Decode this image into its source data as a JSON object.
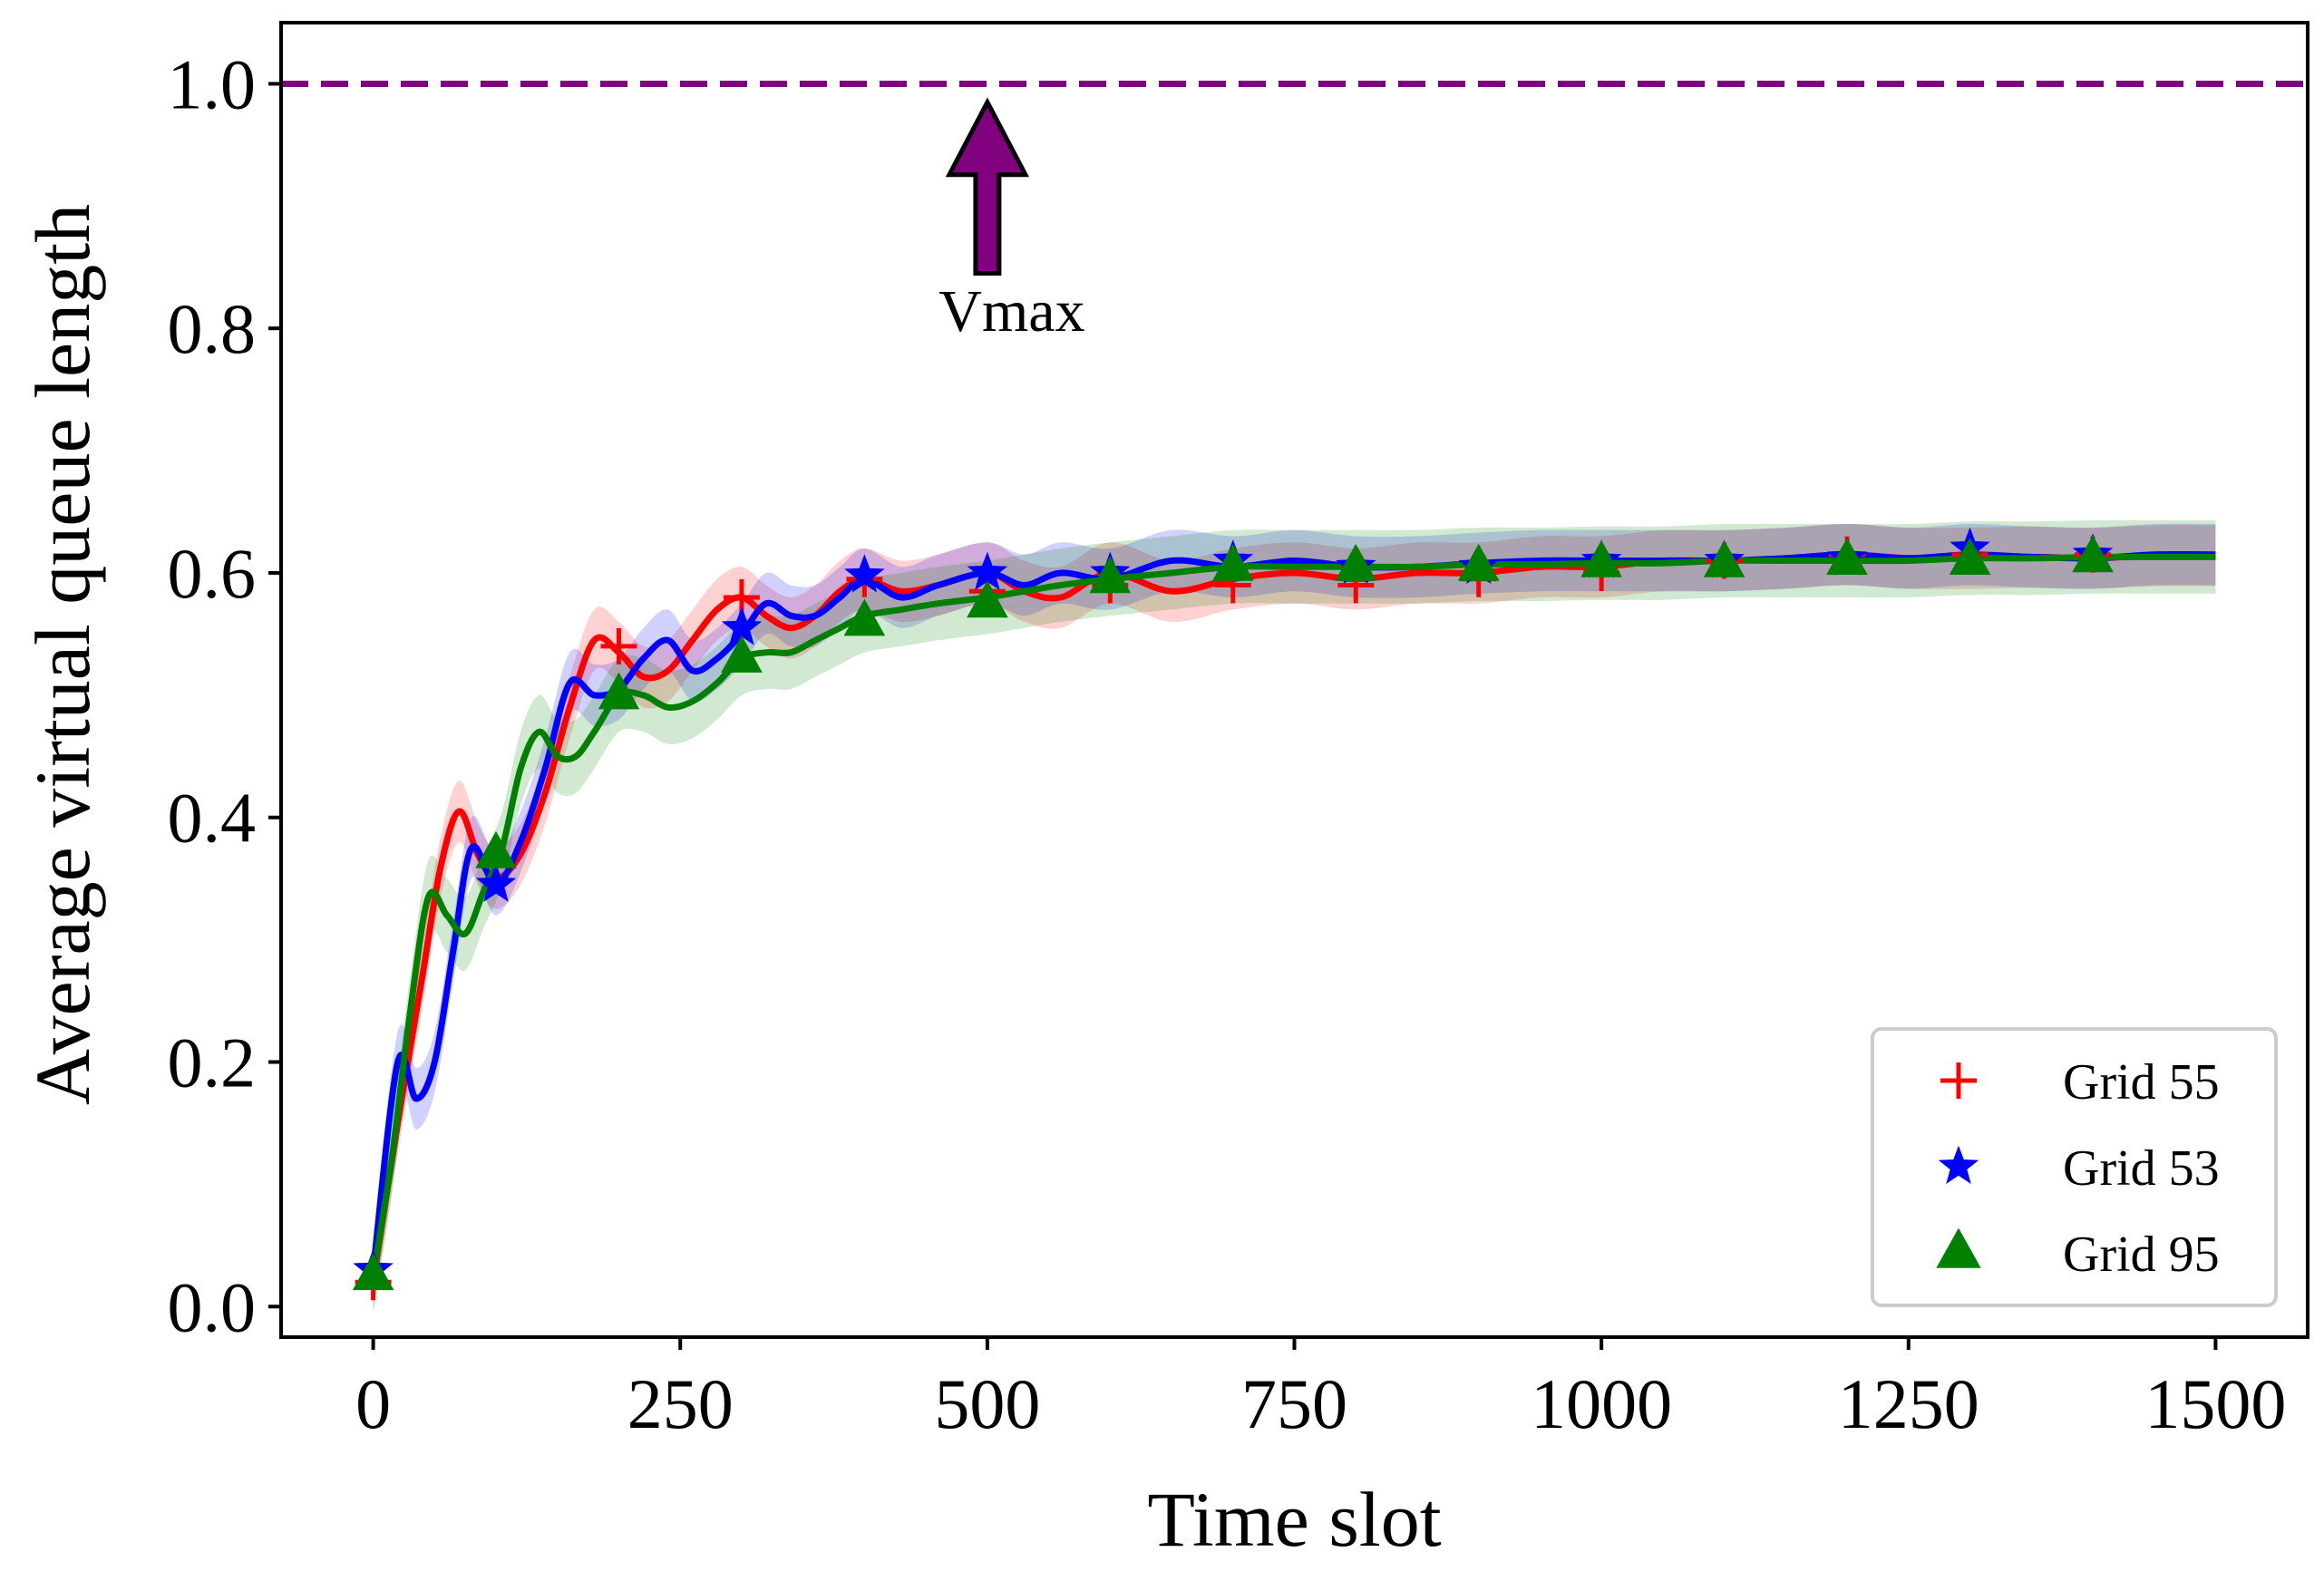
{
  "chart_data": {
    "type": "line",
    "title": "",
    "xlabel": "Time slot",
    "ylabel": "Average virtual queue length",
    "xlim": [
      -75,
      1575
    ],
    "ylim": [
      -0.025,
      1.05
    ],
    "xticks": [
      0,
      250,
      500,
      750,
      1000,
      1250,
      1500
    ],
    "xtick_labels": [
      "0",
      "250",
      "500",
      "750",
      "1000",
      "1250",
      "1500"
    ],
    "yticks": [
      0.0,
      0.2,
      0.4,
      0.6,
      0.8,
      1.0
    ],
    "ytick_labels": [
      "0.0",
      "0.2",
      "0.4",
      "0.6",
      "0.8",
      "1.0"
    ],
    "grid": false,
    "legend_position": "bottom-right",
    "reference_line": {
      "y": 1.0,
      "style": "dashed",
      "color": "#800080"
    },
    "annotation": {
      "text": "Vmax",
      "text_x": 520,
      "text_y": 0.82,
      "arrow_from": [
        500,
        0.845
      ],
      "arrow_to": [
        500,
        0.985
      ],
      "color": "#800080"
    },
    "series": [
      {
        "name": "Grid 55",
        "color": "#ff0000",
        "marker": "plus",
        "x": [
          0,
          20,
          40,
          55,
          70,
          85,
          100,
          120,
          140,
          160,
          180,
          200,
          220,
          240,
          260,
          280,
          300,
          320,
          340,
          360,
          380,
          400,
          430,
          460,
          500,
          530,
          560,
          600,
          650,
          700,
          750,
          800,
          850,
          900,
          950,
          1000,
          1050,
          1100,
          1150,
          1200,
          1250,
          1300,
          1350,
          1400,
          1450,
          1500
        ],
        "y": [
          0.02,
          0.15,
          0.27,
          0.36,
          0.405,
          0.37,
          0.35,
          0.37,
          0.42,
          0.49,
          0.545,
          0.535,
          0.515,
          0.52,
          0.545,
          0.57,
          0.58,
          0.565,
          0.555,
          0.565,
          0.585,
          0.595,
          0.585,
          0.59,
          0.6,
          0.585,
          0.58,
          0.6,
          0.585,
          0.595,
          0.6,
          0.595,
          0.6,
          0.6,
          0.605,
          0.605,
          0.61,
          0.61,
          0.612,
          0.615,
          0.612,
          0.612,
          0.613,
          0.612,
          0.614,
          0.614
        ],
        "markers_x": [
          0,
          200,
          300,
          400,
          500,
          600,
          700,
          800,
          900,
          1000,
          1100,
          1200,
          1300,
          1400
        ],
        "markers_y": [
          0.02,
          0.54,
          0.58,
          0.595,
          0.585,
          0.59,
          0.59,
          0.59,
          0.595,
          0.6,
          0.61,
          0.615,
          0.615,
          0.615
        ],
        "band": 0.025
      },
      {
        "name": "Grid 53",
        "color": "#0000ff",
        "marker": "star",
        "x": [
          0,
          20,
          35,
          50,
          65,
          80,
          100,
          120,
          140,
          160,
          180,
          200,
          220,
          240,
          260,
          280,
          300,
          320,
          340,
          360,
          380,
          400,
          430,
          460,
          500,
          530,
          560,
          600,
          650,
          700,
          750,
          800,
          850,
          900,
          950,
          1000,
          1050,
          1100,
          1150,
          1200,
          1250,
          1300,
          1350,
          1400,
          1450,
          1500
        ],
        "y": [
          0.03,
          0.2,
          0.17,
          0.2,
          0.29,
          0.375,
          0.345,
          0.38,
          0.44,
          0.51,
          0.5,
          0.505,
          0.53,
          0.545,
          0.52,
          0.53,
          0.55,
          0.575,
          0.565,
          0.565,
          0.58,
          0.595,
          0.58,
          0.59,
          0.6,
          0.59,
          0.6,
          0.595,
          0.61,
          0.605,
          0.61,
          0.605,
          0.605,
          0.608,
          0.61,
          0.61,
          0.61,
          0.61,
          0.612,
          0.615,
          0.612,
          0.615,
          0.613,
          0.612,
          0.615,
          0.615
        ],
        "markers_x": [
          0,
          100,
          300,
          400,
          500,
          600,
          700,
          800,
          900,
          1000,
          1100,
          1200,
          1300,
          1400
        ],
        "markers_y": [
          0.03,
          0.345,
          0.555,
          0.598,
          0.6,
          0.6,
          0.61,
          0.605,
          0.605,
          0.61,
          0.61,
          0.612,
          0.62,
          0.615
        ],
        "band": 0.025
      },
      {
        "name": "Grid 95",
        "color": "#008000",
        "marker": "triangle",
        "x": [
          0,
          15,
          30,
          45,
          60,
          75,
          90,
          105,
          120,
          135,
          150,
          165,
          180,
          200,
          220,
          240,
          260,
          280,
          300,
          320,
          340,
          360,
          380,
          400,
          430,
          460,
          500,
          530,
          560,
          600,
          650,
          700,
          750,
          800,
          850,
          900,
          950,
          1000,
          1050,
          1100,
          1150,
          1200,
          1250,
          1300,
          1350,
          1400,
          1450,
          1500
        ],
        "y": [
          0.025,
          0.12,
          0.24,
          0.335,
          0.32,
          0.305,
          0.34,
          0.375,
          0.44,
          0.47,
          0.45,
          0.45,
          0.47,
          0.5,
          0.5,
          0.49,
          0.495,
          0.51,
          0.53,
          0.535,
          0.535,
          0.545,
          0.555,
          0.565,
          0.57,
          0.575,
          0.58,
          0.585,
          0.59,
          0.595,
          0.6,
          0.605,
          0.605,
          0.605,
          0.605,
          0.607,
          0.607,
          0.608,
          0.608,
          0.61,
          0.61,
          0.61,
          0.61,
          0.612,
          0.612,
          0.613,
          0.613,
          0.613
        ],
        "markers_x": [
          0,
          100,
          200,
          300,
          400,
          500,
          600,
          700,
          800,
          900,
          1000,
          1100,
          1200,
          1300,
          1400
        ],
        "markers_y": [
          0.025,
          0.37,
          0.5,
          0.53,
          0.56,
          0.575,
          0.595,
          0.605,
          0.605,
          0.605,
          0.608,
          0.608,
          0.61,
          0.61,
          0.612
        ],
        "band": 0.03
      }
    ]
  }
}
